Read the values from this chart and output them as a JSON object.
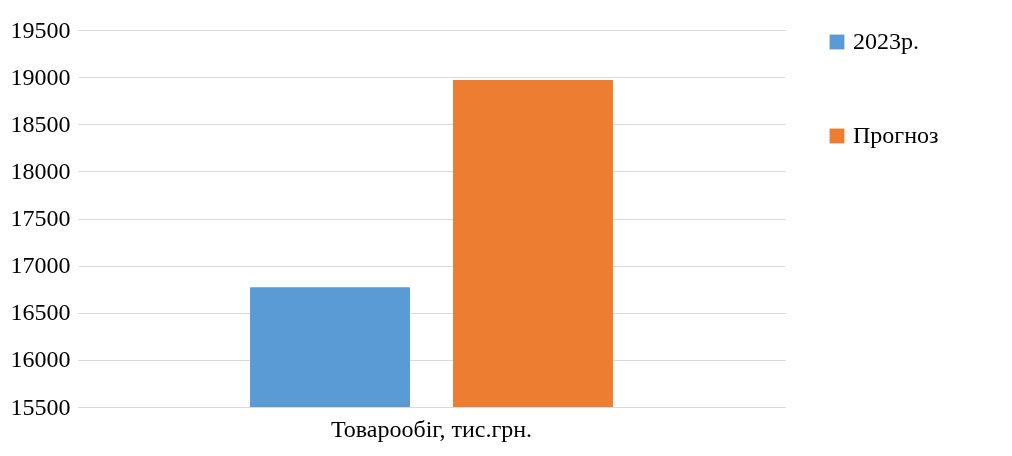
{
  "chart_data": {
    "type": "bar",
    "categories": [
      "Товарообіг, тис.грн."
    ],
    "series": [
      {
        "name": "2023р.",
        "color": "#5b9bd5",
        "values": [
          16770
        ]
      },
      {
        "name": "Прогноз",
        "color": "#ed7d31",
        "values": [
          18970
        ]
      }
    ],
    "ylim": [
      15500,
      19500
    ],
    "yticks": [
      15500,
      16000,
      16500,
      17000,
      17500,
      18000,
      18500,
      19000,
      19500
    ],
    "grid": "y",
    "legend": "right"
  }
}
